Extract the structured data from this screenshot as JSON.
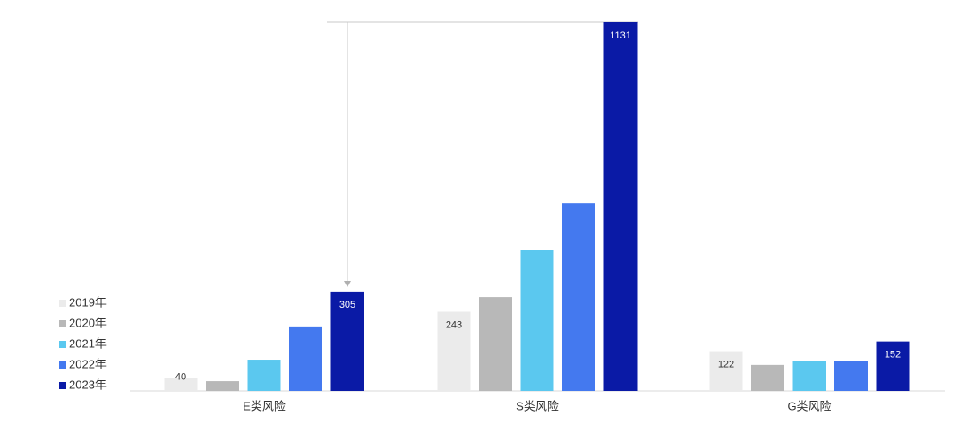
{
  "chart_data": {
    "type": "bar",
    "categories": [
      "E类风险",
      "S类风险",
      "G类风险"
    ],
    "series": [
      {
        "name": "2019年",
        "color": "#ebebeb",
        "values": [
          40,
          243,
          122
        ],
        "value_labels": [
          "40",
          "243",
          "122"
        ]
      },
      {
        "name": "2020年",
        "color": "#b8b8b8",
        "values": [
          30,
          288,
          80
        ],
        "value_labels": [
          null,
          null,
          null
        ]
      },
      {
        "name": "2021年",
        "color": "#5bc8ef",
        "values": [
          96,
          431,
          91
        ],
        "value_labels": [
          null,
          null,
          null
        ]
      },
      {
        "name": "2022年",
        "color": "#4479ef",
        "values": [
          198,
          576,
          93
        ],
        "value_labels": [
          null,
          null,
          null
        ]
      },
      {
        "name": "2023年",
        "color": "#0a1aa6",
        "values": [
          305,
          1131,
          152
        ],
        "value_labels": [
          "305",
          "1131",
          "152"
        ]
      }
    ],
    "ylim": [
      0,
      1131
    ],
    "legend": "left"
  }
}
